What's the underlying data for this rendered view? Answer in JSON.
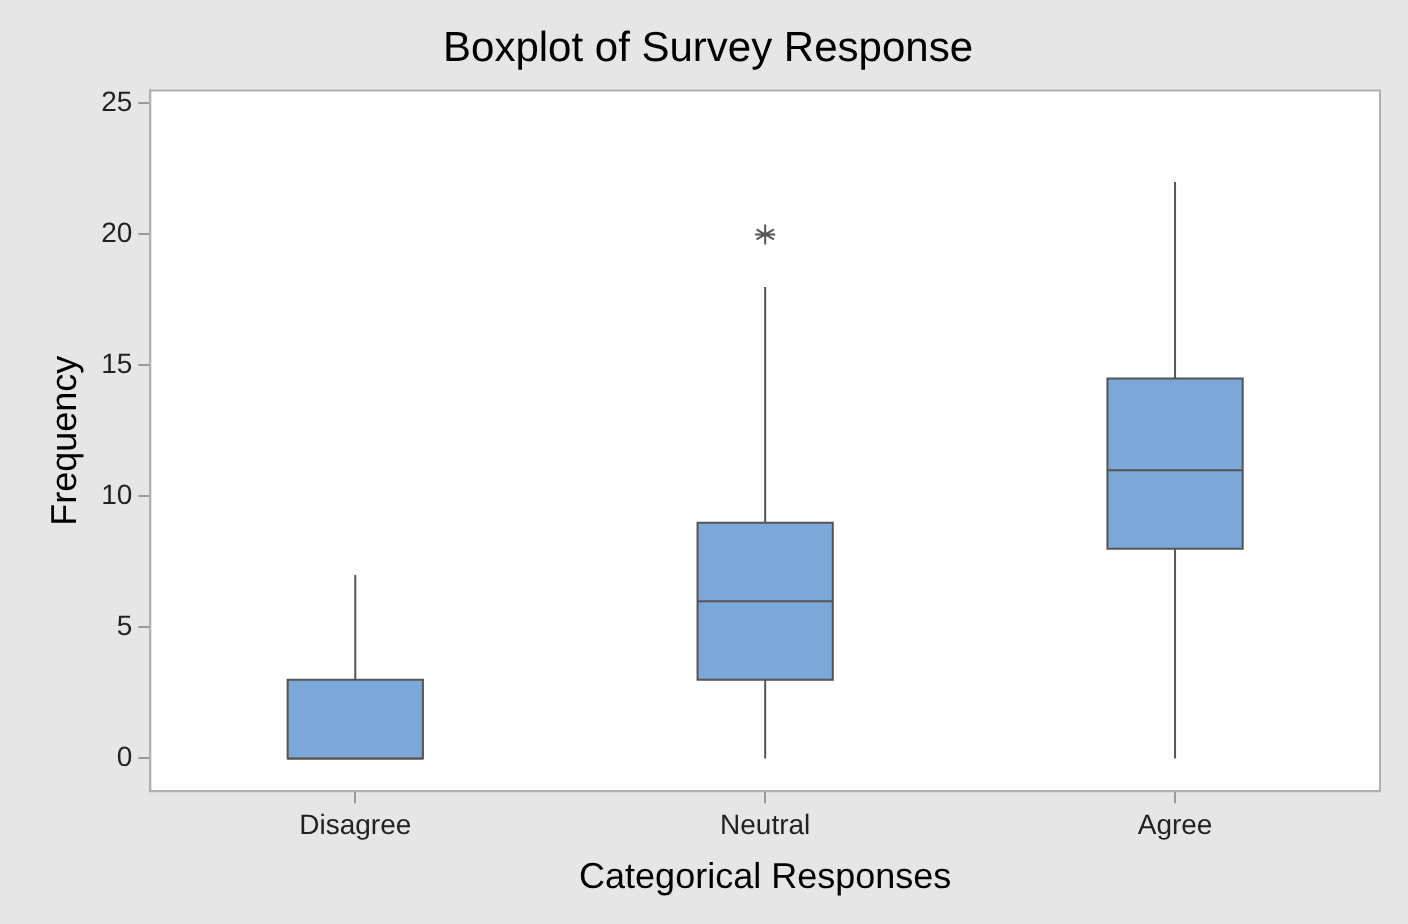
{
  "chart_data": {
    "type": "box",
    "title": "Boxplot of Survey Response",
    "xlabel": "Categorical Responses",
    "ylabel": "Frequency",
    "categories": [
      "Disagree",
      "Neutral",
      "Agree"
    ],
    "color": "#7ba7d9",
    "boxes": [
      {
        "low": 0,
        "q1": 0,
        "median": 0,
        "q3": 3,
        "high": 7
      },
      {
        "low": 0,
        "q1": 3,
        "median": 6,
        "q3": 9,
        "high": 18,
        "outliers": [
          20
        ]
      },
      {
        "low": 0,
        "q1": 8,
        "median": 11,
        "q3": 14.5,
        "high": 22
      }
    ],
    "ylim": [
      -1.25,
      25.5
    ],
    "yticks": [
      0,
      5,
      10,
      15,
      20,
      25
    ],
    "grid": false,
    "legend": false,
    "marker": "star"
  }
}
